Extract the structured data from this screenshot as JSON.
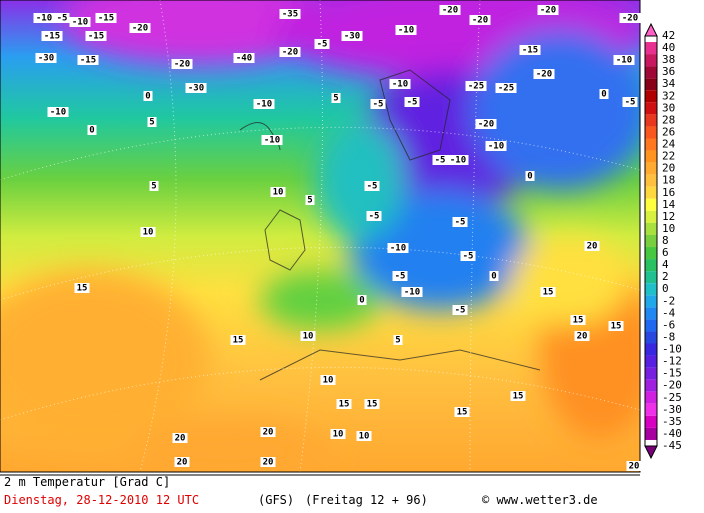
{
  "legend": {
    "labels": [
      "42",
      "40",
      "38",
      "36",
      "34",
      "32",
      "30",
      "28",
      "26",
      "24",
      "22",
      "20",
      "18",
      "16",
      "14",
      "12",
      "10",
      "8",
      "6",
      "4",
      "2",
      "0",
      "-2",
      "-4",
      "-6",
      "-8",
      "-10",
      "-12",
      "-15",
      "-20",
      "-25",
      "-30",
      "-35",
      "-40",
      "-45"
    ],
    "colors": [
      "#ff60c8",
      "#e83090",
      "#c81860",
      "#a00838",
      "#880018",
      "#b00000",
      "#d01010",
      "#e83820",
      "#f85820",
      "#ff7820",
      "#ff9420",
      "#ffaa30",
      "#ffc040",
      "#ffd840",
      "#ffff40",
      "#d8f040",
      "#a8e040",
      "#78d040",
      "#48c840",
      "#28c060",
      "#20c090",
      "#20c0c8",
      "#20a8e8",
      "#2088f0",
      "#2068f0",
      "#2848e0",
      "#3828e0",
      "#5820e0",
      "#7820e0",
      "#a020e0",
      "#d020e0",
      "#f030e8",
      "#d800c0",
      "#a800a0",
      "#780078"
    ]
  },
  "map": {
    "labels": [
      "-10",
      "-5",
      "-15",
      "-10",
      "-15",
      "-15",
      "-20",
      "-30",
      "-15",
      "-20",
      "-40",
      "-35",
      "-20",
      "-5",
      "-30",
      "-20",
      "-20",
      "-20",
      "-20",
      "-10",
      "-15",
      "-10",
      "-25",
      "-20",
      "0",
      "-5",
      "-10",
      "0",
      "5",
      "5",
      "0",
      "-30",
      "-10",
      "-10",
      "-5",
      "-10",
      "-5",
      "-25",
      "-20",
      "-10",
      "-5",
      "-10",
      "-5",
      "0",
      "5",
      "10",
      "10",
      "5",
      "-5",
      "-5",
      "-10",
      "-5",
      "0",
      "-5",
      "15",
      "-10",
      "0",
      "-5",
      "15",
      "20",
      "15",
      "10",
      "5",
      "15",
      "15",
      "20",
      "10",
      "15",
      "15",
      "15",
      "15",
      "20",
      "20",
      "10",
      "10",
      "20",
      "20",
      "20"
    ]
  },
  "footer": {
    "variable": "2 m Temperatur [Grad C]",
    "run": "Dienstag, 28-12-2010  12 UTC",
    "model": "(GFS)",
    "valid": "(Freitag 12 + 96)",
    "source": "© www.wetter3.de"
  }
}
